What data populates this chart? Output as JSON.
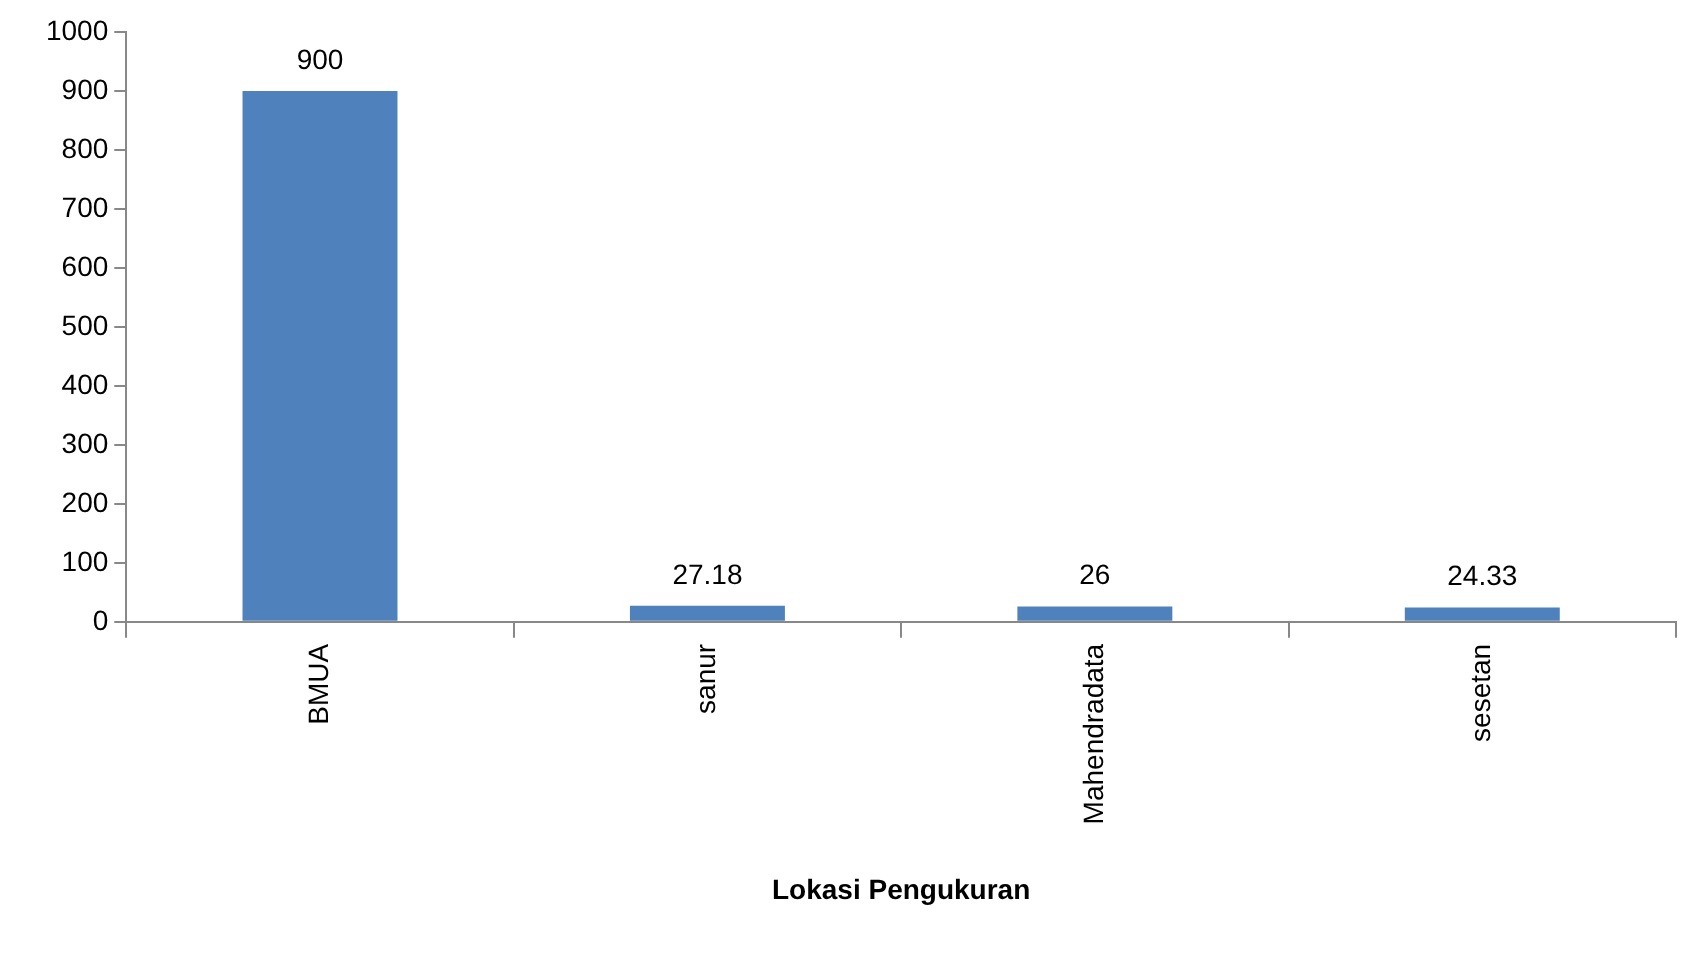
{
  "chart_data": {
    "type": "bar",
    "xlabel": "Lokasi Pengukuran",
    "categories": [
      "BMUA",
      "sanur",
      "Mahendradata",
      "sesetan"
    ],
    "values": [
      900,
      27.18,
      26,
      24.33
    ],
    "color": "#4f81bd",
    "ylim": [
      0,
      1000
    ],
    "yticks": [
      0,
      100,
      200,
      300,
      400,
      500,
      600,
      700,
      800,
      900,
      1000
    ],
    "grid": false,
    "legend": false,
    "data_labels": true
  }
}
